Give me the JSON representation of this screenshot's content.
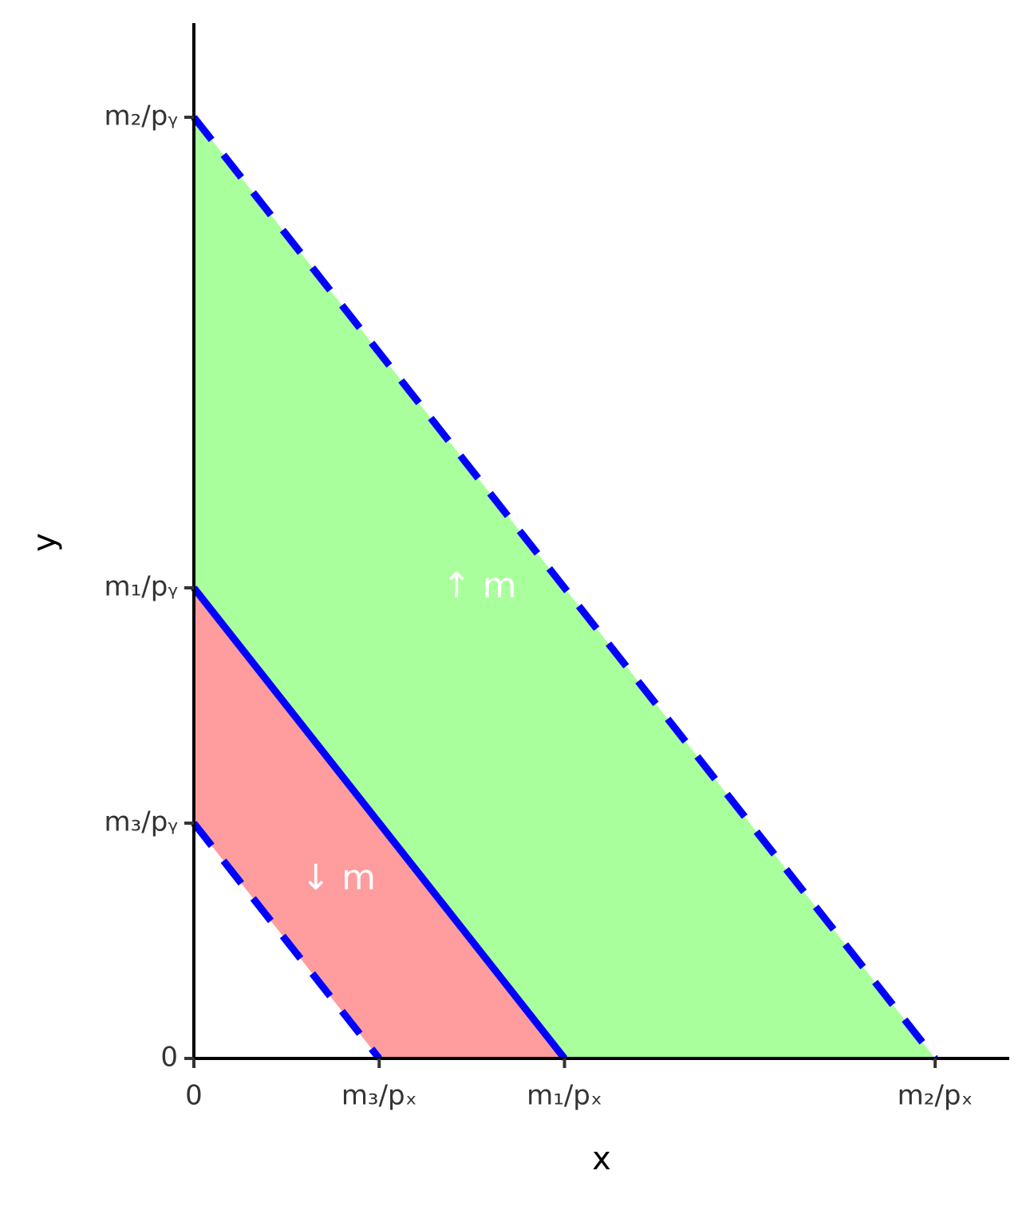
{
  "chart_data": {
    "type": "line",
    "x_label": "x",
    "y_label": "y",
    "xlim": [
      0,
      22
    ],
    "ylim": [
      0,
      22
    ],
    "xticks": [
      0,
      {
        "value": 5,
        "label": "m₃/pₓ"
      },
      {
        "value": 10,
        "label": "m₁/pₓ"
      },
      {
        "value": 20,
        "label": "m₂/pₓ"
      }
    ],
    "yticks": [
      0,
      {
        "value": 5,
        "label": "m₃/pᵧ"
      },
      {
        "value": 10,
        "label": "m₁/pᵧ"
      },
      {
        "value": 20,
        "label": "m₂/pᵧ"
      }
    ],
    "areas": [
      {
        "x": [
          0,
          20,
          10,
          0
        ],
        "y": [
          20,
          0,
          0,
          10
        ],
        "color": "#a9ff9b"
      },
      {
        "x": [
          0,
          10,
          5,
          0
        ],
        "y": [
          10,
          0,
          0,
          5
        ],
        "color": "#ff9c9e"
      }
    ],
    "lines": [
      {
        "x": [
          0,
          20
        ],
        "y": [
          20,
          0
        ],
        "color": "#0000ff",
        "dashed": true
      },
      {
        "x": [
          0,
          10
        ],
        "y": [
          10,
          0
        ],
        "color": "#0000ff",
        "dashed": false
      },
      {
        "x": [
          0,
          5
        ],
        "y": [
          5,
          0
        ],
        "color": "#0000ff",
        "dashed": true
      }
    ],
    "annotations": [
      {
        "text": "↑ m",
        "x": 7.7,
        "y": 10
      },
      {
        "text": "↓ m",
        "x": 3.9,
        "y": 3.8
      }
    ]
  }
}
